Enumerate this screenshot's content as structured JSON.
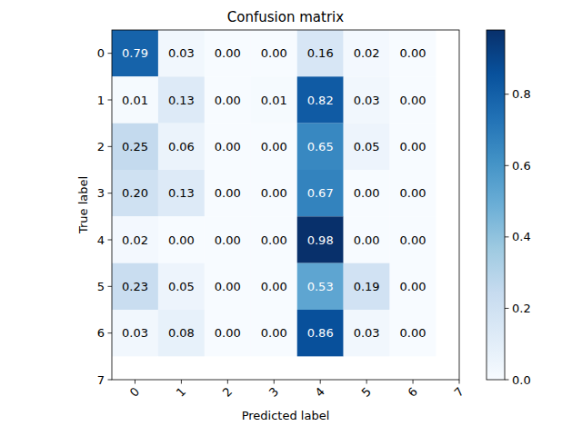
{
  "chart_data": {
    "type": "heatmap",
    "title": "Confusion matrix",
    "x_label": "Predicted label",
    "y_label": "True label",
    "xlim": [
      -0.5,
      7
    ],
    "ylim": [
      7,
      -0.5
    ],
    "xticks": [
      0,
      1,
      2,
      3,
      4,
      5,
      6,
      7
    ],
    "yticks": [
      0,
      1,
      2,
      3,
      4,
      5,
      6,
      7
    ],
    "values": [
      [
        0.79,
        0.03,
        0,
        0,
        0.16,
        0.02,
        0
      ],
      [
        0.01,
        0.13,
        0,
        0.01,
        0.82,
        0.03,
        0
      ],
      [
        0.25,
        0.06,
        0,
        0,
        0.65,
        0.05,
        0
      ],
      [
        0.2,
        0.13,
        0,
        0,
        0.67,
        0,
        0
      ],
      [
        0.02,
        0,
        0,
        0,
        0.98,
        0,
        0
      ],
      [
        0.23,
        0.05,
        0,
        0,
        0.53,
        0.19,
        0
      ],
      [
        0.03,
        0.08,
        0,
        0,
        0.86,
        0.03,
        0
      ]
    ],
    "value_labels": [
      [
        "0.79",
        "0.03",
        "0.00",
        "0.00",
        "0.16",
        "0.02",
        "0.00"
      ],
      [
        "0.01",
        "0.13",
        "0.00",
        "0.01",
        "0.82",
        "0.03",
        "0.00"
      ],
      [
        "0.25",
        "0.06",
        "0.00",
        "0.00",
        "0.65",
        "0.05",
        "0.00"
      ],
      [
        "0.20",
        "0.13",
        "0.00",
        "0.00",
        "0.67",
        "0.00",
        "0.00"
      ],
      [
        "0.02",
        "0.00",
        "0.00",
        "0.00",
        "0.98",
        "0.00",
        "0.00"
      ],
      [
        "0.23",
        "0.05",
        "0.00",
        "0.00",
        "0.53",
        "0.19",
        "0.00"
      ],
      [
        "0.03",
        "0.08",
        "0.00",
        "0.00",
        "0.86",
        "0.03",
        "0.00"
      ]
    ],
    "data_labels": true,
    "color_range": [
      0,
      0.98
    ],
    "color_ticks": [
      {
        "value": 0,
        "label": "0.0"
      },
      {
        "value": 0.2,
        "label": "0.2"
      },
      {
        "value": 0.4,
        "label": "0.4"
      },
      {
        "value": 0.6,
        "label": "0.6"
      },
      {
        "value": 0.8,
        "label": "0.8"
      }
    ]
  }
}
